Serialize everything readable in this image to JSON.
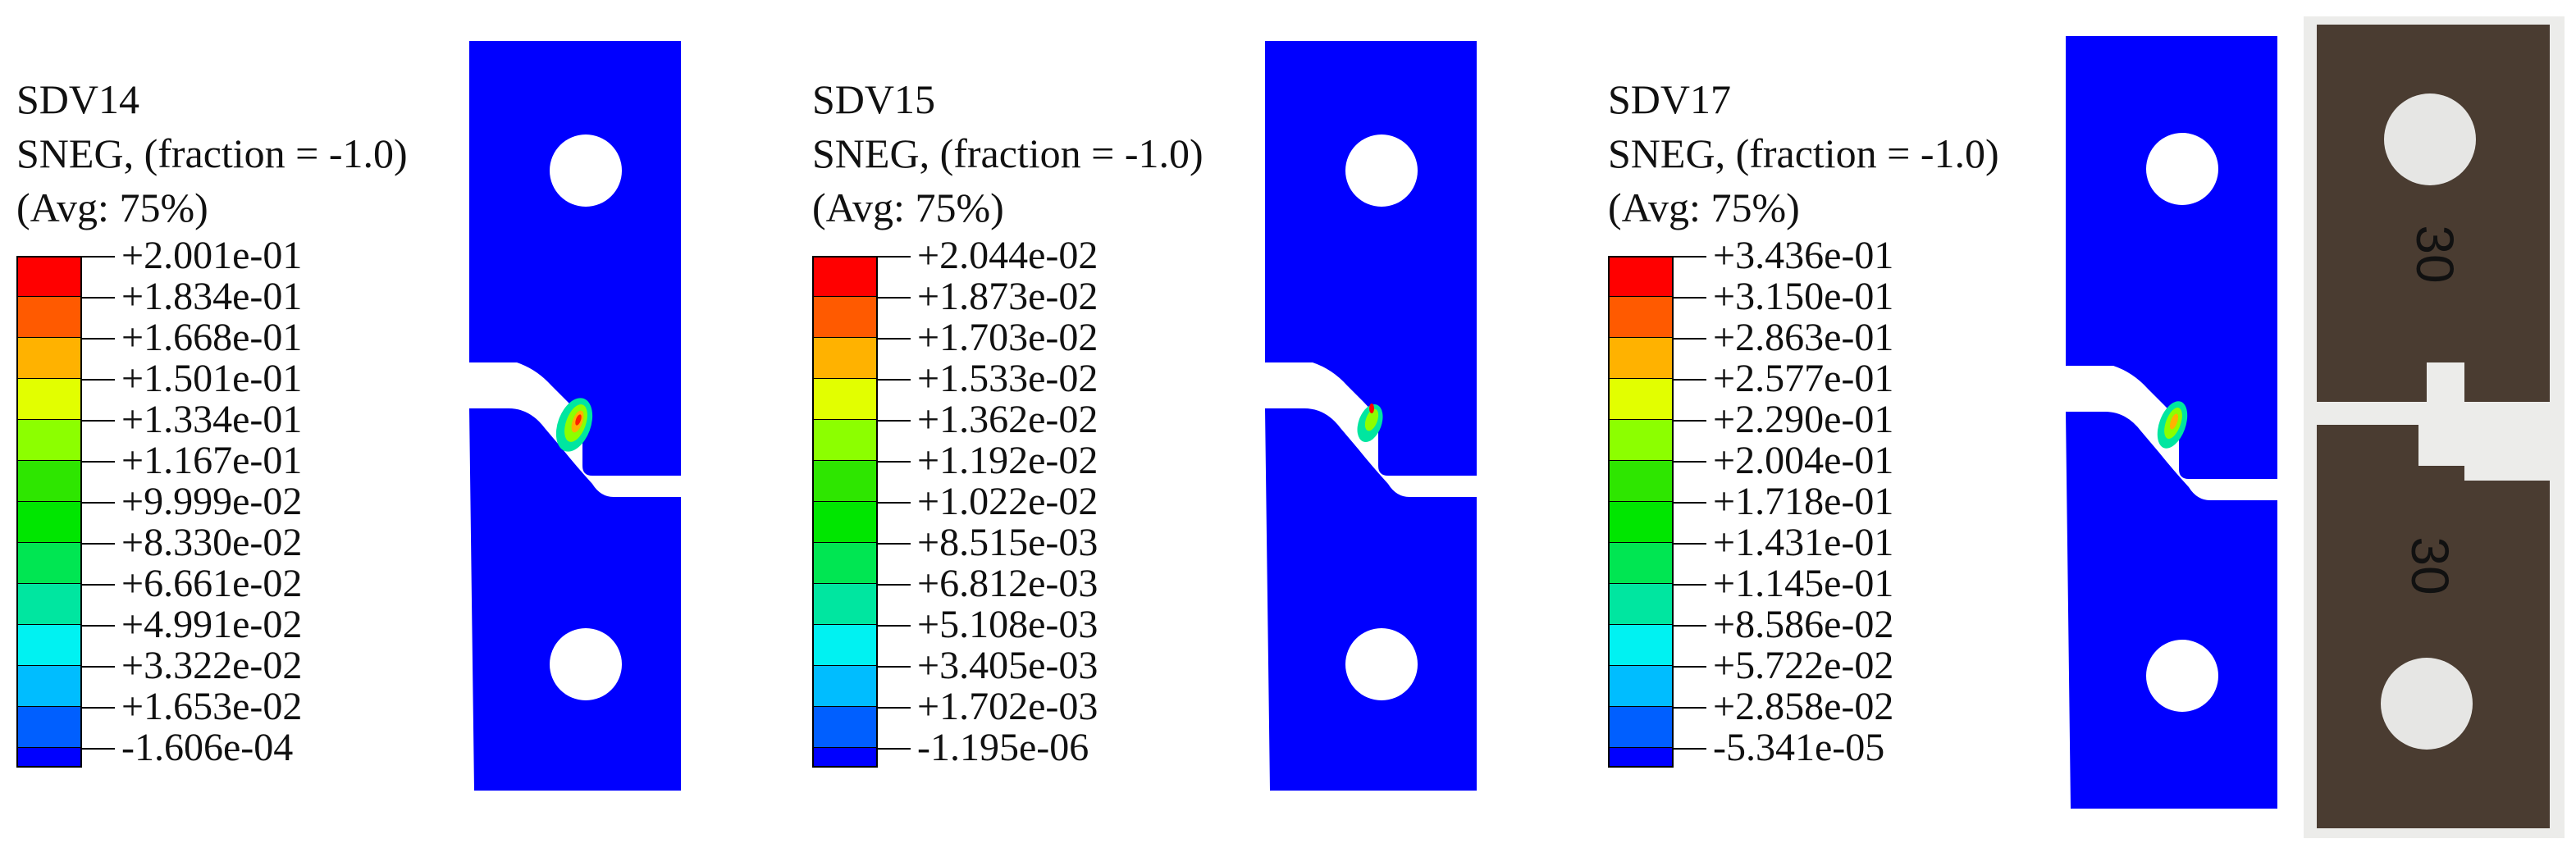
{
  "panels": [
    {
      "variable": "SDV14",
      "section": "SNEG, (fraction = -1.0)",
      "averaging": "(Avg: 75%)",
      "legend_values": [
        "+2.001e-01",
        "+1.834e-01",
        "+1.668e-01",
        "+1.501e-01",
        "+1.334e-01",
        "+1.167e-01",
        "+9.999e-02",
        "+8.330e-02",
        "+6.661e-02",
        "+4.991e-02",
        "+3.322e-02",
        "+1.653e-02",
        "-1.606e-04"
      ]
    },
    {
      "variable": "SDV15",
      "section": "SNEG, (fraction = -1.0)",
      "averaging": "(Avg: 75%)",
      "legend_values": [
        "+2.044e-02",
        "+1.873e-02",
        "+1.703e-02",
        "+1.533e-02",
        "+1.362e-02",
        "+1.192e-02",
        "+1.022e-02",
        "+8.515e-03",
        "+6.812e-03",
        "+5.108e-03",
        "+3.405e-03",
        "+1.702e-03",
        "-1.195e-06"
      ]
    },
    {
      "variable": "SDV17",
      "section": "SNEG, (fraction = -1.0)",
      "averaging": "(Avg: 75%)",
      "legend_values": [
        "+3.436e-01",
        "+3.150e-01",
        "+2.863e-01",
        "+2.577e-01",
        "+2.290e-01",
        "+2.004e-01",
        "+1.718e-01",
        "+1.431e-01",
        "+1.145e-01",
        "+8.586e-02",
        "+5.722e-02",
        "+2.858e-02",
        "-5.341e-05"
      ]
    }
  ],
  "colors": {
    "contour_bands": [
      "#ff0000",
      "#ff5a00",
      "#ffb200",
      "#e2ff00",
      "#8cff00",
      "#2ee600",
      "#00e600",
      "#00e652",
      "#00e6a0",
      "#00f2f2",
      "#00bdff",
      "#005fff",
      "#0000ff"
    ],
    "specimen_fill": "#0000ff",
    "photo_plate": "#4a3c31"
  },
  "photo": {
    "marking_top": "30",
    "marking_bottom": "30"
  }
}
